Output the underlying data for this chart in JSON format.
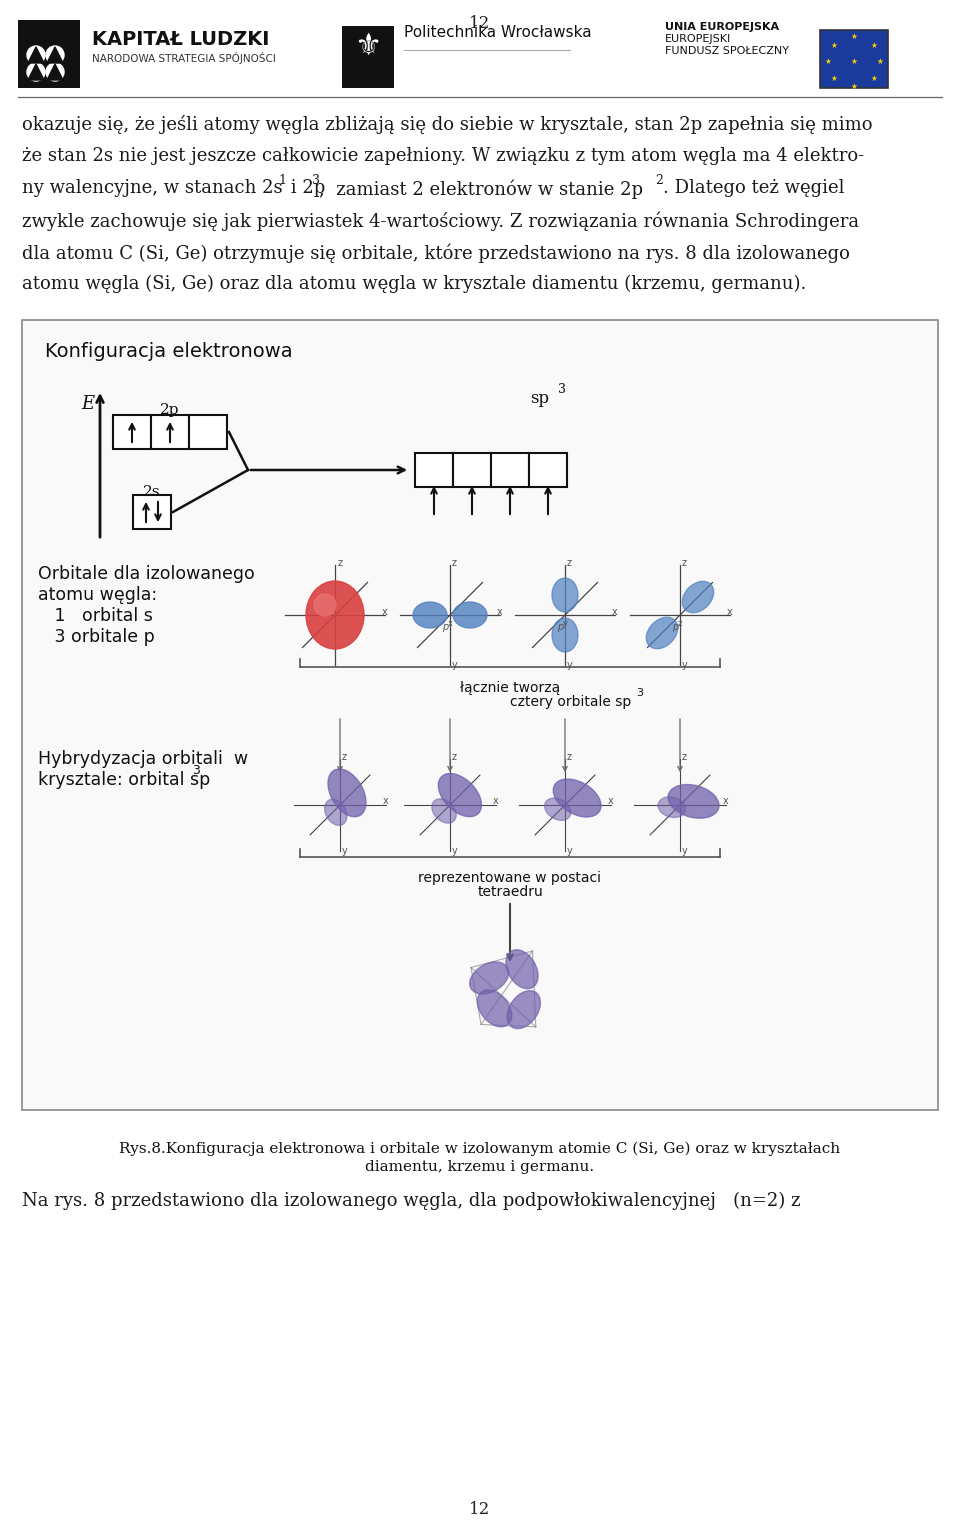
{
  "page_number": "12",
  "bg_color": "#ffffff",
  "text_color": "#1a1a1a",
  "header_text1": "KAPITAŁ LUDZKI",
  "header_text2": "NARODOWA STRATEGIA SPÓJNOŚCI",
  "header_text3": "Politechnika Wrocławska",
  "header_text4_line1": "UNIA EUROPEJSKA",
  "header_text4_line2": "EUROPEJSKI",
  "header_text4_line3": "FUNDUSZ SPOŁECZNY",
  "para_line1": "okazuje się, że jeśli atomy węgla zbliżają się do siebie w krysztale, stan 2p zapełnia się mimo",
  "para_line2": "że stan 2s nie jest jeszcze całkowicie zapełniony. W związku z tym atom węgla ma 4 elektro-",
  "para_line3a": "ny walencyjne, w stanach 2s",
  "para_sup1": "1",
  "para_line3b": " i 2p",
  "para_sup2": "3",
  "para_line3c": ",  zamiast 2 elektronów w stanie 2p",
  "para_sup3": "2",
  "para_line3d": ". Dlatego też węgiel",
  "para_line4": "zwykle zachowuje się jak pierwiastek 4-wartościowy. Z rozwiązania równania Schrodingera",
  "para_line5": "dla atomu C (Si, Ge) otrzymuje się orbitale, które przedstawiono na rys. 8 dla izolowanego",
  "para_line6": "atomu węgla (Si, Ge) oraz dla atomu węgla w krysztale diamentu (krzemu, germanu).",
  "box_title": "Konfiguracja elektronowa",
  "label_2p": "2p",
  "label_2s": "2s",
  "label_E": "E",
  "label_sp3": "sp",
  "label_sp3_sup": "3",
  "text_orb_line1": "Orbitale dla izolowanego",
  "text_orb_line2": "atomu węgla:",
  "text_orb_line3": "   1   orbital s",
  "text_orb_line4": "   3 orbitale p",
  "text_lacznie1": "łącznie tworzą",
  "text_lacznie2": "cztery orbitale sp",
  "text_lacznie2_sup": "3",
  "text_hybr_line1": "Hybrydyzacja orbitali  w",
  "text_hybr_line2": "krysztale: orbital sp",
  "text_hybr_line2_sup": "3",
  "text_repr1": "reprezentowane w postaci",
  "text_repr2": "tetraedru",
  "caption_line1": "Rys.8.Konfiguracja elektronowa i orbitale w izolowanym atomie C (Si, Ge) oraz w kryształach",
  "caption_line2": "diamentu, krzemu i germanu.",
  "last_line": "Na rys. 8 przedstawiono dla izolowanego węgla, dla podpowłokiwalencyjnej   (n=2) z",
  "orbital_s_color": "#d94040",
  "orbital_p_color": "#5080c0",
  "orbital_sp3_color": "#7060aa",
  "font_size_main": 13,
  "lh": 32
}
